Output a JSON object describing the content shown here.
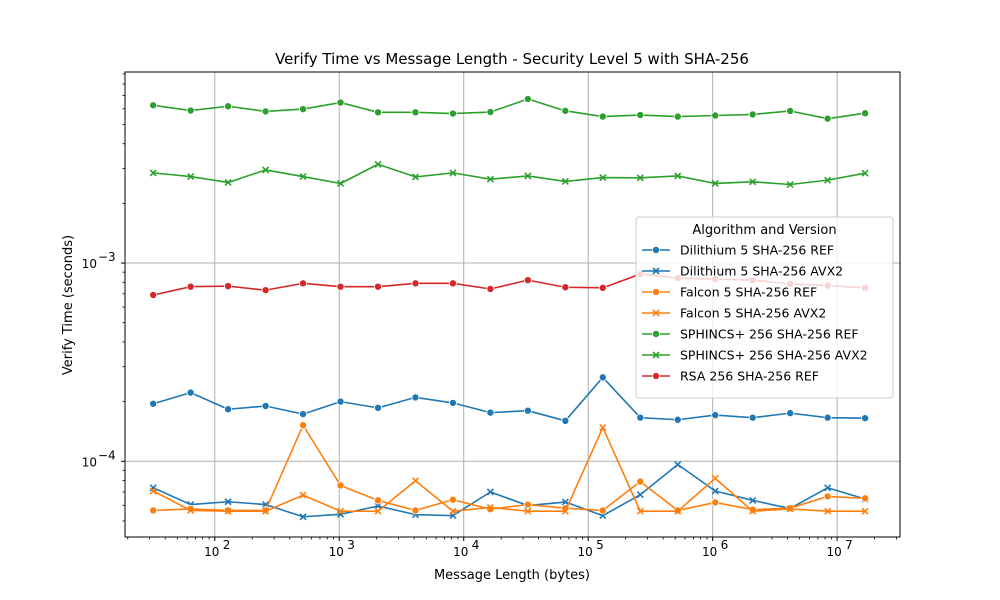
{
  "chart_data": {
    "type": "line",
    "title": "Verify Time vs Message Length - Security Level 5 with SHA-256",
    "xlabel": "Message Length (bytes)",
    "ylabel": "Verify Time (seconds)",
    "x_scale": "log",
    "y_scale": "log",
    "xlim": [
      19,
      32000000
    ],
    "ylim": [
      4.15e-05,
      0.0092
    ],
    "grid": true,
    "x_ticks": [
      {
        "value": 100,
        "base": "10",
        "exp": "2"
      },
      {
        "value": 1000,
        "base": "10",
        "exp": "3"
      },
      {
        "value": 10000,
        "base": "10",
        "exp": "4"
      },
      {
        "value": 100000,
        "base": "10",
        "exp": "5"
      },
      {
        "value": 1000000,
        "base": "10",
        "exp": "6"
      },
      {
        "value": 10000000,
        "base": "10",
        "exp": "7"
      }
    ],
    "y_ticks": [
      {
        "value": 0.0001,
        "base": "10",
        "exp": "−4"
      },
      {
        "value": 0.001,
        "base": "10",
        "exp": "−3"
      }
    ],
    "legend_title": "Algorithm and Version",
    "legend_position": "center-right",
    "x": [
      32,
      64,
      128,
      256,
      512,
      1024,
      2048,
      4096,
      8192,
      16384,
      32768,
      65536,
      131072,
      262144,
      524288,
      1048576,
      2097152,
      4194304,
      8388608,
      16777216
    ],
    "series": [
      {
        "name": "Dilithium 5 SHA-256 REF",
        "color": "#1f77b4",
        "marker": "circle",
        "values": [
          0.000195,
          0.000222,
          0.000183,
          0.00019,
          0.000173,
          0.0002,
          0.000186,
          0.00021,
          0.000197,
          0.000176,
          0.00018,
          0.00016,
          0.000265,
          0.000166,
          0.000162,
          0.000171,
          0.000166,
          0.000175,
          0.000166,
          0.000165
        ]
      },
      {
        "name": "Dilithium 5 SHA-256 AVX2",
        "color": "#1f77b4",
        "marker": "x",
        "values": [
          7.35e-05,
          6.05e-05,
          6.25e-05,
          6.05e-05,
          5.25e-05,
          5.4e-05,
          5.95e-05,
          5.38e-05,
          5.32e-05,
          7e-05,
          5.98e-05,
          6.23e-05,
          5.32e-05,
          6.78e-05,
          9.63e-05,
          7.08e-05,
          6.35e-05,
          5.78e-05,
          7.35e-05,
          6.45e-05
        ]
      },
      {
        "name": "Falcon 5 SHA-256 REF",
        "color": "#ff7f0e",
        "marker": "circle",
        "values": [
          5.65e-05,
          5.75e-05,
          5.65e-05,
          5.65e-05,
          0.000152,
          7.55e-05,
          6.35e-05,
          5.65e-05,
          6.4e-05,
          5.73e-05,
          6.05e-05,
          5.8e-05,
          5.65e-05,
          7.9e-05,
          5.65e-05,
          6.2e-05,
          5.7e-05,
          5.8e-05,
          6.65e-05,
          6.5e-05
        ]
      },
      {
        "name": "Falcon 5 SHA-256 AVX2",
        "color": "#ff7f0e",
        "marker": "x",
        "values": [
          7.08e-05,
          5.65e-05,
          5.6e-05,
          5.6e-05,
          6.75e-05,
          5.6e-05,
          5.6e-05,
          7.98e-05,
          5.6e-05,
          5.85e-05,
          5.6e-05,
          5.6e-05,
          0.000148,
          5.6e-05,
          5.6e-05,
          8.2e-05,
          5.6e-05,
          5.75e-05,
          5.6e-05,
          5.6e-05
        ]
      },
      {
        "name": "SPHINCS+ 256 SHA-256 REF",
        "color": "#2ca02c",
        "marker": "circle",
        "values": [
          0.00625,
          0.00588,
          0.00618,
          0.00582,
          0.00598,
          0.00645,
          0.00576,
          0.00576,
          0.00568,
          0.00578,
          0.00672,
          0.00586,
          0.00548,
          0.00558,
          0.00548,
          0.00555,
          0.00562,
          0.00585,
          0.00535,
          0.0057
        ]
      },
      {
        "name": "SPHINCS+ 256 SHA-256 AVX2",
        "color": "#2ca02c",
        "marker": "x",
        "values": [
          0.00285,
          0.00273,
          0.00255,
          0.00295,
          0.00273,
          0.00252,
          0.00315,
          0.00272,
          0.00285,
          0.00265,
          0.00275,
          0.00258,
          0.0027,
          0.00269,
          0.00275,
          0.00252,
          0.00257,
          0.00249,
          0.00262,
          0.00284
        ]
      },
      {
        "name": "RSA 256 SHA-256 REF",
        "color": "#d62728",
        "marker": "circle",
        "values": [
          0.00069,
          0.00076,
          0.000765,
          0.00073,
          0.00079,
          0.00076,
          0.00076,
          0.00079,
          0.00079,
          0.00074,
          0.00082,
          0.000755,
          0.00075,
          0.00088,
          0.00084,
          0.00083,
          0.00082,
          0.000785,
          0.00077,
          0.00075
        ]
      }
    ]
  }
}
